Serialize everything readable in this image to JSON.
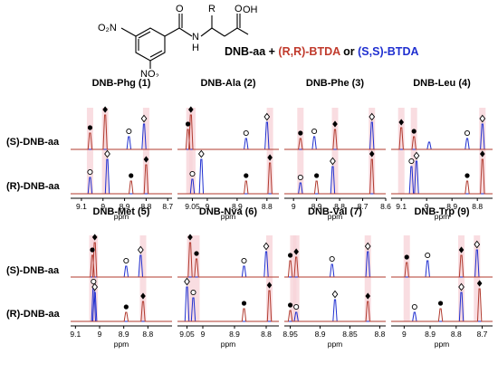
{
  "headline": {
    "prefix": "DNB-aa + ",
    "rr_label": "(R,R)-BTDA",
    "joiner": " or ",
    "ss_label": "(S,S)-BTDA"
  },
  "structure": {
    "no2_top": "O₂N",
    "no2_bottom": "NO₂",
    "n_label": "N",
    "h_label": "H",
    "r_label": "R",
    "oh_label": "OH",
    "o_amide": "O",
    "o_acid": "O"
  },
  "row_labels": [
    "(S)-DNB-aa",
    "(R)-DNB-aa"
  ],
  "x_unit": "ppm",
  "colors": {
    "s_trace": "#1f2fd0",
    "r_trace": "#b03a2e",
    "highlight": "#f8d5da",
    "axis": "#000000"
  },
  "chart_data": [
    {
      "type": "line",
      "title": "DNB-Phg (1)",
      "xlabel": "ppm",
      "xlim": [
        9.15,
        8.68
      ],
      "x_ticks": [
        9.1,
        9.0,
        8.9,
        8.8,
        8.7
      ],
      "highlights": [
        9.06,
        8.99,
        8.8
      ],
      "series": [
        {
          "row": "(S)-DNB-aa",
          "peaks": [
            {
              "x": 9.06,
              "height": 0.45,
              "color": "red",
              "marker": "filled-circle"
            },
            {
              "x": 8.99,
              "height": 0.95,
              "color": "red",
              "marker": "filled-diamond"
            },
            {
              "x": 8.88,
              "height": 0.35,
              "color": "blue",
              "marker": "open-circle"
            },
            {
              "x": 8.81,
              "height": 0.7,
              "color": "blue",
              "marker": "open-diamond"
            }
          ]
        },
        {
          "row": "(R)-DNB-aa",
          "peaks": [
            {
              "x": 9.06,
              "height": 0.45,
              "color": "blue",
              "marker": "open-circle"
            },
            {
              "x": 8.98,
              "height": 0.95,
              "color": "blue",
              "marker": "open-diamond"
            },
            {
              "x": 8.87,
              "height": 0.35,
              "color": "red",
              "marker": "filled-circle"
            },
            {
              "x": 8.8,
              "height": 0.8,
              "color": "red",
              "marker": "filled-diamond"
            }
          ]
        }
      ]
    },
    {
      "type": "line",
      "title": "DNB-Ala (2)",
      "xlabel": "ppm",
      "xlim": [
        9.1,
        8.76
      ],
      "x_ticks": [
        9.05,
        9.0,
        8.9,
        8.8
      ],
      "highlights": [
        9.06,
        9.05,
        8.79
      ],
      "series": [
        {
          "row": "(S)-DNB-aa",
          "peaks": [
            {
              "x": 9.065,
              "height": 0.55,
              "color": "red",
              "marker": "filled-circle"
            },
            {
              "x": 9.055,
              "height": 0.95,
              "color": "red",
              "marker": "filled-diamond"
            },
            {
              "x": 8.87,
              "height": 0.3,
              "color": "blue",
              "marker": "open-circle"
            },
            {
              "x": 8.8,
              "height": 0.75,
              "color": "blue",
              "marker": "open-diamond"
            }
          ]
        },
        {
          "row": "(R)-DNB-aa",
          "peaks": [
            {
              "x": 9.05,
              "height": 0.4,
              "color": "blue",
              "marker": "open-circle"
            },
            {
              "x": 9.02,
              "height": 0.95,
              "color": "blue",
              "marker": "open-diamond"
            },
            {
              "x": 8.87,
              "height": 0.35,
              "color": "red",
              "marker": "filled-circle"
            },
            {
              "x": 8.79,
              "height": 0.85,
              "color": "red",
              "marker": "filled-diamond"
            }
          ]
        }
      ]
    },
    {
      "type": "line",
      "title": "DNB-Phe (3)",
      "xlabel": "ppm",
      "xlim": [
        9.04,
        8.6
      ],
      "x_ticks": [
        9.0,
        8.9,
        8.8,
        8.7,
        8.6
      ],
      "highlights": [
        8.97,
        8.82,
        8.66
      ],
      "series": [
        {
          "row": "(S)-DNB-aa",
          "peaks": [
            {
              "x": 8.97,
              "height": 0.3,
              "color": "red",
              "marker": "filled-circle"
            },
            {
              "x": 8.91,
              "height": 0.35,
              "color": "blue",
              "marker": "open-circle"
            },
            {
              "x": 8.82,
              "height": 0.55,
              "color": "red",
              "marker": "filled-diamond"
            },
            {
              "x": 8.66,
              "height": 0.75,
              "color": "blue",
              "marker": "open-diamond"
            }
          ]
        },
        {
          "row": "(R)-DNB-aa",
          "peaks": [
            {
              "x": 8.97,
              "height": 0.3,
              "color": "blue",
              "marker": "open-circle"
            },
            {
              "x": 8.9,
              "height": 0.35,
              "color": "red",
              "marker": "filled-circle"
            },
            {
              "x": 8.83,
              "height": 0.75,
              "color": "blue",
              "marker": "open-diamond"
            },
            {
              "x": 8.66,
              "height": 0.95,
              "color": "red",
              "marker": "filled-diamond"
            }
          ]
        }
      ]
    },
    {
      "type": "line",
      "title": "DNB-Leu (4)",
      "xlabel": "ppm",
      "xlim": [
        9.14,
        8.74
      ],
      "x_ticks": [
        9.1,
        9.0,
        8.9,
        8.8
      ],
      "highlights": [
        9.1,
        9.05,
        8.78
      ],
      "series": [
        {
          "row": "(S)-DNB-aa",
          "peaks": [
            {
              "x": 9.1,
              "height": 0.6,
              "color": "red",
              "marker": "filled-diamond"
            },
            {
              "x": 9.05,
              "height": 0.35,
              "color": "red",
              "marker": "filled-circle"
            },
            {
              "x": 8.99,
              "height": 0.2,
              "color": "blue",
              "marker": "none"
            },
            {
              "x": 8.84,
              "height": 0.3,
              "color": "blue",
              "marker": "open-circle"
            },
            {
              "x": 8.78,
              "height": 0.7,
              "color": "blue",
              "marker": "open-diamond"
            }
          ]
        },
        {
          "row": "(R)-DNB-aa",
          "peaks": [
            {
              "x": 9.06,
              "height": 0.75,
              "color": "blue",
              "marker": "open-circle"
            },
            {
              "x": 9.04,
              "height": 0.9,
              "color": "blue",
              "marker": "open-diamond"
            },
            {
              "x": 8.84,
              "height": 0.35,
              "color": "red",
              "marker": "filled-circle"
            },
            {
              "x": 8.78,
              "height": 0.95,
              "color": "red",
              "marker": "filled-diamond"
            }
          ]
        }
      ]
    },
    {
      "type": "line",
      "title": "DNB-Met (5)",
      "xlabel": "ppm",
      "xlim": [
        9.12,
        8.7
      ],
      "x_ticks": [
        9.1,
        9.0,
        8.9,
        8.8
      ],
      "highlights": [
        9.03,
        9.02,
        8.82
      ],
      "series": [
        {
          "row": "(S)-DNB-aa",
          "peaks": [
            {
              "x": 9.03,
              "height": 0.6,
              "color": "red",
              "marker": "filled-circle"
            },
            {
              "x": 9.02,
              "height": 0.95,
              "color": "red",
              "marker": "filled-diamond"
            },
            {
              "x": 8.89,
              "height": 0.3,
              "color": "blue",
              "marker": "open-circle"
            },
            {
              "x": 8.83,
              "height": 0.6,
              "color": "blue",
              "marker": "open-diamond"
            }
          ]
        },
        {
          "row": "(R)-DNB-aa",
          "peaks": [
            {
              "x": 9.025,
              "height": 0.95,
              "color": "blue",
              "marker": "open-circle"
            },
            {
              "x": 9.02,
              "height": 0.8,
              "color": "blue",
              "marker": "open-diamond"
            },
            {
              "x": 8.89,
              "height": 0.25,
              "color": "red",
              "marker": "filled-circle"
            },
            {
              "x": 8.82,
              "height": 0.55,
              "color": "red",
              "marker": "filled-diamond"
            }
          ]
        }
      ]
    },
    {
      "type": "line",
      "title": "DNB-Nva (6)",
      "xlabel": "ppm",
      "xlim": [
        9.08,
        8.76
      ],
      "x_ticks": [
        9.05,
        9.0,
        8.9,
        8.8
      ],
      "highlights": [
        9.04,
        9.02,
        8.79
      ],
      "series": [
        {
          "row": "(S)-DNB-aa",
          "peaks": [
            {
              "x": 9.04,
              "height": 0.95,
              "color": "red",
              "marker": "filled-diamond"
            },
            {
              "x": 9.02,
              "height": 0.5,
              "color": "red",
              "marker": "filled-circle"
            },
            {
              "x": 8.87,
              "height": 0.3,
              "color": "blue",
              "marker": "open-circle"
            },
            {
              "x": 8.8,
              "height": 0.7,
              "color": "blue",
              "marker": "open-diamond"
            }
          ]
        },
        {
          "row": "(R)-DNB-aa",
          "peaks": [
            {
              "x": 9.05,
              "height": 0.95,
              "color": "blue",
              "marker": "open-diamond"
            },
            {
              "x": 9.03,
              "height": 0.65,
              "color": "blue",
              "marker": "open-circle"
            },
            {
              "x": 8.87,
              "height": 0.35,
              "color": "red",
              "marker": "filled-circle"
            },
            {
              "x": 8.79,
              "height": 0.85,
              "color": "red",
              "marker": "filled-diamond"
            }
          ]
        }
      ]
    },
    {
      "type": "line",
      "title": "DNB-Val (7)",
      "xlabel": "ppm",
      "xlim": [
        8.96,
        8.79
      ],
      "x_ticks": [
        8.95,
        8.9,
        8.85,
        8.8
      ],
      "highlights": [
        8.945,
        8.94,
        8.82
      ],
      "series": [
        {
          "row": "(S)-DNB-aa",
          "peaks": [
            {
              "x": 8.95,
              "height": 0.45,
              "color": "red",
              "marker": "filled-circle"
            },
            {
              "x": 8.94,
              "height": 0.55,
              "color": "red",
              "marker": "filled-diamond"
            },
            {
              "x": 8.88,
              "height": 0.35,
              "color": "blue",
              "marker": "open-circle"
            },
            {
              "x": 8.82,
              "height": 0.7,
              "color": "blue",
              "marker": "open-diamond"
            }
          ]
        },
        {
          "row": "(R)-DNB-aa",
          "peaks": [
            {
              "x": 8.95,
              "height": 0.3,
              "color": "red",
              "marker": "filled-circle"
            },
            {
              "x": 8.94,
              "height": 0.25,
              "color": "blue",
              "marker": "open-circle"
            },
            {
              "x": 8.875,
              "height": 0.6,
              "color": "blue",
              "marker": "open-diamond"
            },
            {
              "x": 8.82,
              "height": 0.55,
              "color": "red",
              "marker": "filled-diamond"
            }
          ]
        }
      ]
    },
    {
      "type": "line",
      "title": "DNB-Trp (9)",
      "xlabel": "ppm",
      "xlim": [
        9.05,
        8.66
      ],
      "x_ticks": [
        9.0,
        8.9,
        8.8,
        8.7
      ],
      "highlights": [
        8.99,
        8.78,
        8.72
      ],
      "series": [
        {
          "row": "(S)-DNB-aa",
          "peaks": [
            {
              "x": 8.99,
              "height": 0.4,
              "color": "red",
              "marker": "filled-circle"
            },
            {
              "x": 8.91,
              "height": 0.45,
              "color": "blue",
              "marker": "open-circle"
            },
            {
              "x": 8.78,
              "height": 0.6,
              "color": "red",
              "marker": "filled-diamond"
            },
            {
              "x": 8.72,
              "height": 0.75,
              "color": "blue",
              "marker": "open-diamond"
            }
          ]
        },
        {
          "row": "(R)-DNB-aa",
          "peaks": [
            {
              "x": 8.96,
              "height": 0.25,
              "color": "blue",
              "marker": "open-circle"
            },
            {
              "x": 8.86,
              "height": 0.35,
              "color": "red",
              "marker": "filled-circle"
            },
            {
              "x": 8.78,
              "height": 0.8,
              "color": "blue",
              "marker": "open-diamond"
            },
            {
              "x": 8.71,
              "height": 0.9,
              "color": "red",
              "marker": "filled-diamond"
            }
          ]
        }
      ]
    }
  ]
}
